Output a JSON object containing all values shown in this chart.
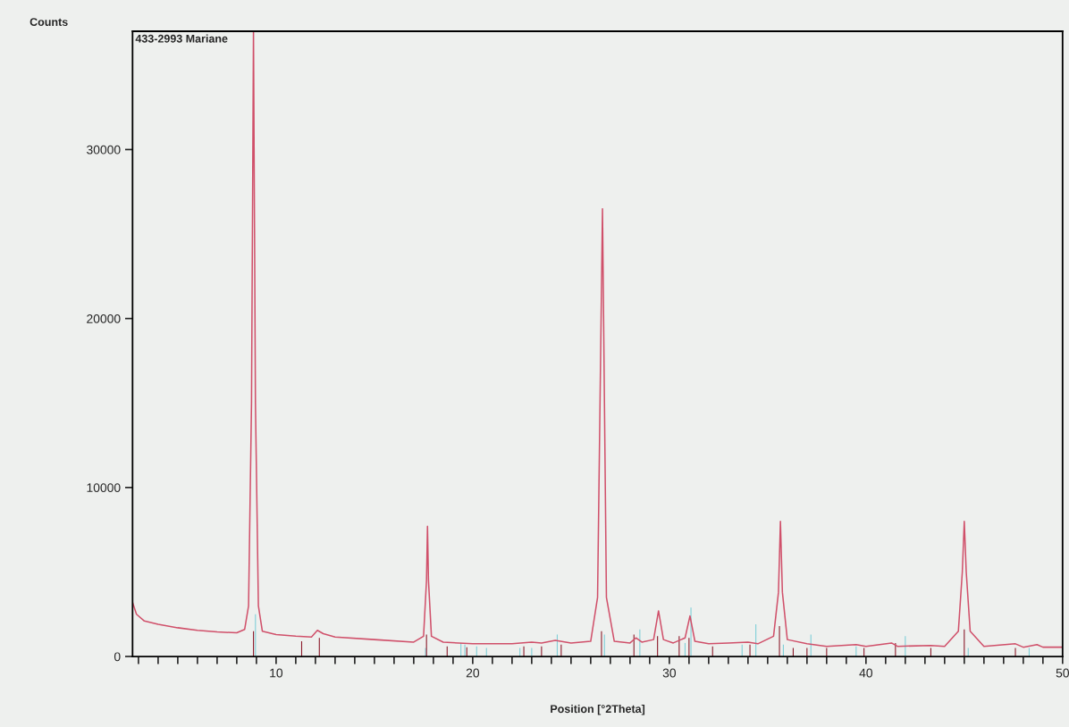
{
  "chart_data": {
    "type": "line",
    "xlabel": "Position [°2Theta]",
    "ylabel": "Counts",
    "annotations": [
      "433-2993 Mariane"
    ],
    "xlim": [
      2.7,
      50
    ],
    "ylim": [
      0,
      37000
    ],
    "xticks": [
      {
        "value": 3,
        "label": null
      },
      {
        "value": 4,
        "label": null
      },
      {
        "value": 5,
        "label": null
      },
      {
        "value": 6,
        "label": null
      },
      {
        "value": 7,
        "label": null
      },
      {
        "value": 8,
        "label": null
      },
      {
        "value": 9,
        "label": null
      },
      10,
      {
        "value": 11,
        "label": null
      },
      {
        "value": 12,
        "label": null
      },
      {
        "value": 13,
        "label": null
      },
      {
        "value": 14,
        "label": null
      },
      {
        "value": 15,
        "label": null
      },
      {
        "value": 16,
        "label": null
      },
      {
        "value": 17,
        "label": null
      },
      {
        "value": 18,
        "label": null
      },
      {
        "value": 19,
        "label": null
      },
      20,
      {
        "value": 21,
        "label": null
      },
      {
        "value": 22,
        "label": null
      },
      {
        "value": 23,
        "label": null
      },
      {
        "value": 24,
        "label": null
      },
      {
        "value": 25,
        "label": null
      },
      {
        "value": 26,
        "label": null
      },
      {
        "value": 27,
        "label": null
      },
      {
        "value": 28,
        "label": null
      },
      {
        "value": 29,
        "label": null
      },
      30,
      {
        "value": 31,
        "label": null
      },
      {
        "value": 32,
        "label": null
      },
      {
        "value": 33,
        "label": null
      },
      {
        "value": 34,
        "label": null
      },
      {
        "value": 35,
        "label": null
      },
      {
        "value": 36,
        "label": null
      },
      {
        "value": 37,
        "label": null
      },
      {
        "value": 38,
        "label": null
      },
      {
        "value": 39,
        "label": null
      },
      40,
      {
        "value": 41,
        "label": null
      },
      {
        "value": 42,
        "label": null
      },
      {
        "value": 43,
        "label": null
      },
      {
        "value": 44,
        "label": null
      },
      {
        "value": 45,
        "label": null
      },
      {
        "value": 46,
        "label": null
      },
      {
        "value": 47,
        "label": null
      },
      {
        "value": 48,
        "label": null
      },
      {
        "value": 49,
        "label": null
      },
      50
    ],
    "yticks": [
      0,
      10000,
      20000,
      30000
    ],
    "grid": false,
    "legend": false,
    "marker": "none",
    "line_style": "solid",
    "series": [
      {
        "type": "bar",
        "color": "#7fcfd8",
        "x": [
          8.95,
          17.6,
          19.4,
          19.6,
          20.2,
          20.7,
          22.4,
          23.0,
          24.3,
          26.7,
          28.5,
          30.8,
          31.1,
          33.7,
          34.4,
          35.8,
          37.2,
          39.5,
          42.0,
          45.2,
          48.3
        ],
        "values": [
          2500,
          500,
          800,
          700,
          600,
          500,
          500,
          500,
          1300,
          1300,
          1600,
          800,
          2900,
          700,
          1900,
          700,
          1300,
          600,
          1200,
          500,
          500
        ]
      },
      {
        "type": "bar",
        "color": "#8b1a2a",
        "x": [
          8.85,
          11.3,
          12.2,
          17.65,
          18.7,
          19.7,
          22.6,
          23.5,
          24.5,
          26.55,
          28.2,
          29.4,
          30.5,
          31.0,
          32.2,
          34.1,
          35.6,
          36.3,
          37.0,
          38.0,
          39.9,
          41.5,
          43.3,
          45.0,
          47.6
        ],
        "values": [
          1500,
          900,
          1100,
          1300,
          600,
          550,
          600,
          600,
          700,
          1500,
          1300,
          1200,
          1200,
          1100,
          600,
          700,
          1800,
          500,
          500,
          500,
          500,
          800,
          500,
          1600,
          500
        ]
      },
      {
        "color": "#d0506a",
        "x": [
          2.7,
          2.9,
          3.3,
          4,
          5,
          6,
          7,
          8,
          8.4,
          8.6,
          8.75,
          8.85,
          8.95,
          9.1,
          9.3,
          10,
          11,
          11.8,
          12.1,
          12.4,
          13,
          15,
          17,
          17.5,
          17.65,
          17.7,
          17.75,
          17.9,
          18.5,
          20,
          22,
          23,
          23.5,
          24.2,
          25,
          26,
          26.35,
          26.6,
          26.8,
          27.2,
          28,
          28.3,
          28.6,
          29.2,
          29.45,
          29.7,
          30.2,
          30.8,
          31.05,
          31.3,
          32,
          33,
          34,
          34.5,
          35.3,
          35.55,
          35.65,
          35.75,
          36,
          37,
          38,
          39.5,
          40,
          41.3,
          41.6,
          43.3,
          44,
          44.7,
          44.9,
          45.0,
          45.1,
          45.3,
          46,
          47.6,
          48,
          48.7,
          49,
          50
        ],
        "values": [
          3200,
          2500,
          2100,
          1900,
          1700,
          1550,
          1450,
          1400,
          1600,
          3000,
          15000,
          37000,
          15000,
          3000,
          1500,
          1300,
          1200,
          1150,
          1550,
          1350,
          1150,
          1000,
          850,
          1200,
          4500,
          7700,
          4500,
          1200,
          850,
          750,
          750,
          850,
          800,
          950,
          800,
          900,
          3500,
          26500,
          3500,
          900,
          800,
          1100,
          850,
          1000,
          2700,
          1000,
          800,
          1100,
          2400,
          900,
          750,
          800,
          850,
          750,
          1200,
          3800,
          8000,
          3800,
          1000,
          750,
          600,
          700,
          600,
          800,
          600,
          650,
          600,
          1500,
          5000,
          8000,
          5000,
          1500,
          600,
          750,
          550,
          700,
          550,
          550
        ]
      }
    ]
  }
}
